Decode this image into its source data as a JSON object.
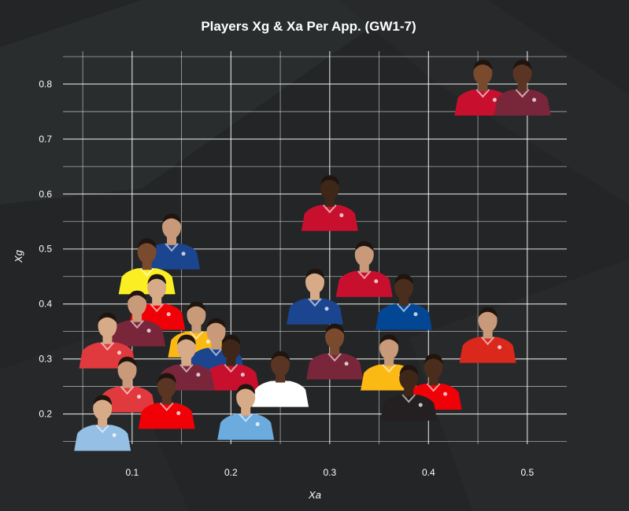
{
  "chart_data": {
    "type": "scatter",
    "title": "Players Xg & Xa Per App. (GW1-7)",
    "xlabel": "Xa",
    "ylabel": "Xg",
    "xlim": [
      0.03,
      0.54
    ],
    "ylim": [
      0.145,
      0.86
    ],
    "x_ticks": [
      0.1,
      0.2,
      0.3,
      0.4,
      0.5
    ],
    "x_tick_labels": [
      "0.1",
      "0.2",
      "0.3",
      "0.4",
      "0.5"
    ],
    "y_ticks": [
      0.2,
      0.3,
      0.4,
      0.5,
      0.6,
      0.7,
      0.8
    ],
    "y_tick_labels": [
      "0.2",
      "0.3",
      "0.4",
      "0.5",
      "0.6",
      "0.7",
      "0.8"
    ],
    "grid": true,
    "marker": "player-photo",
    "points": [
      {
        "x": 0.455,
        "y": 0.8,
        "kit": "#c8102e",
        "skin": "#7a4a2e"
      },
      {
        "x": 0.495,
        "y": 0.8,
        "kit": "#7a263a",
        "skin": "#5a3523"
      },
      {
        "x": 0.3,
        "y": 0.59,
        "kit": "#c8102e",
        "skin": "#3e2618"
      },
      {
        "x": 0.14,
        "y": 0.52,
        "kit": "#1b458f",
        "skin": "#c89a7a"
      },
      {
        "x": 0.115,
        "y": 0.475,
        "kit": "#fbee23",
        "skin": "#7a4a2e"
      },
      {
        "x": 0.335,
        "y": 0.47,
        "kit": "#c8102e",
        "skin": "#c89a7a"
      },
      {
        "x": 0.285,
        "y": 0.42,
        "kit": "#1b458f",
        "skin": "#d8ab88"
      },
      {
        "x": 0.375,
        "y": 0.41,
        "kit": "#034694",
        "skin": "#4a2d1c"
      },
      {
        "x": 0.46,
        "y": 0.35,
        "kit": "#da291c",
        "skin": "#c89a7a"
      },
      {
        "x": 0.075,
        "y": 0.34,
        "kit": "#e03a3e",
        "skin": "#d8ab88"
      },
      {
        "x": 0.105,
        "y": 0.38,
        "kit": "#7a263a",
        "skin": "#c89a7a"
      },
      {
        "x": 0.125,
        "y": 0.41,
        "kit": "#ef0107",
        "skin": "#d8ab88"
      },
      {
        "x": 0.165,
        "y": 0.36,
        "kit": "#fdb913",
        "skin": "#c89a7a"
      },
      {
        "x": 0.2,
        "y": 0.3,
        "kit": "#c8102e",
        "skin": "#3e2618"
      },
      {
        "x": 0.25,
        "y": 0.27,
        "kit": "#ffffff",
        "skin": "#5a3523"
      },
      {
        "x": 0.305,
        "y": 0.32,
        "kit": "#7a263a",
        "skin": "#7a4a2e"
      },
      {
        "x": 0.36,
        "y": 0.3,
        "kit": "#fdb913",
        "skin": "#c89a7a"
      },
      {
        "x": 0.405,
        "y": 0.265,
        "kit": "#ef0107",
        "skin": "#4a2d1c"
      },
      {
        "x": 0.38,
        "y": 0.245,
        "kit": "#241f20",
        "skin": "#3e2618"
      },
      {
        "x": 0.07,
        "y": 0.19,
        "kit": "#95bfe5",
        "skin": "#d8ab88"
      },
      {
        "x": 0.095,
        "y": 0.26,
        "kit": "#e03a3e",
        "skin": "#c89a7a"
      },
      {
        "x": 0.135,
        "y": 0.23,
        "kit": "#ef0107",
        "skin": "#5a3523"
      },
      {
        "x": 0.215,
        "y": 0.21,
        "kit": "#6cabdd",
        "skin": "#d8ab88"
      },
      {
        "x": 0.155,
        "y": 0.3,
        "kit": "#7a263a",
        "skin": "#d8ab88"
      },
      {
        "x": 0.185,
        "y": 0.33,
        "kit": "#1b458f",
        "skin": "#c89a7a"
      }
    ]
  }
}
